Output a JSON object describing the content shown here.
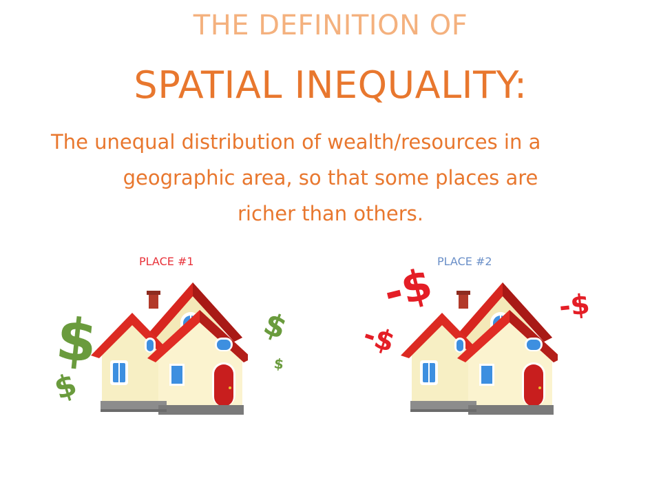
{
  "slide": {
    "kicker": "THE DEFINITION OF",
    "title": "SPATIAL INEQUALITY:",
    "definition_lines": [
      "The unequal distribution of wealth/resources in a",
      "geographic area, so that some places are",
      "richer than others."
    ]
  },
  "places": [
    {
      "label": "PLACE #1",
      "label_color": "#e8323a",
      "money_marks": [
        "$",
        "$",
        "$",
        "$"
      ]
    },
    {
      "label": "PLACE #2",
      "label_color": "#6a8fc8",
      "money_marks": [
        "-$",
        "-$",
        "-$"
      ]
    }
  ],
  "colors": {
    "kicker": "#f4b17e",
    "title": "#e8772e",
    "gain": "#6a9b3d",
    "loss": "#e41e26"
  },
  "icons": [
    "house-icon",
    "dollar-sign-icon",
    "minus-dollar-icon"
  ]
}
